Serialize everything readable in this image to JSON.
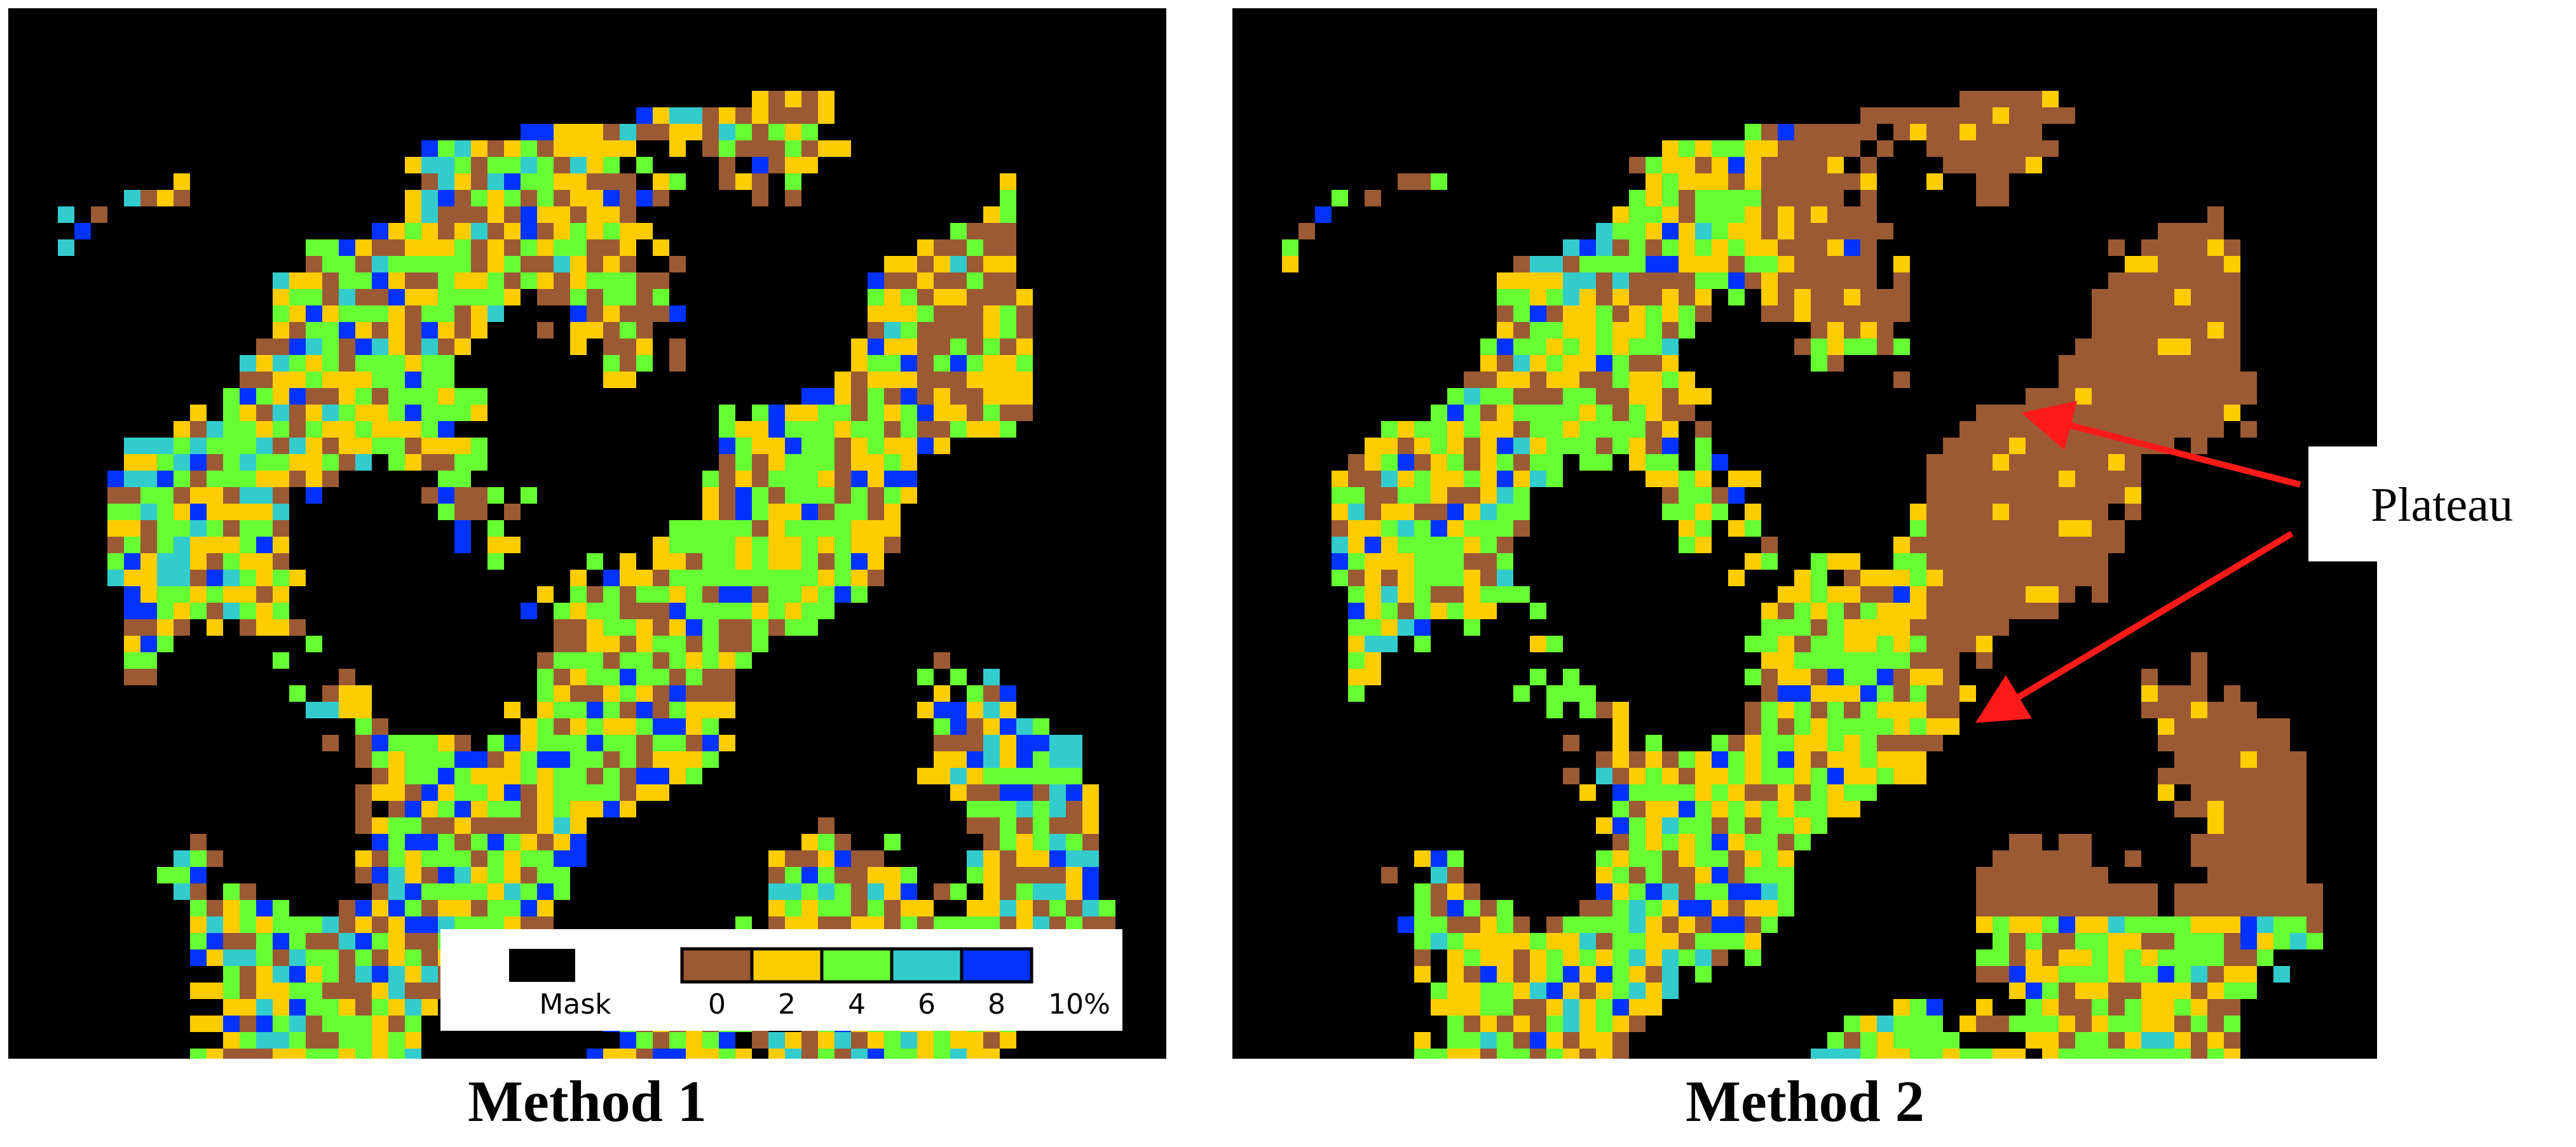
{
  "panels": [
    {
      "title": "Method 1"
    },
    {
      "title": "Method 2"
    }
  ],
  "legend": {
    "mask_label": "Mask",
    "mask_color": "#000000",
    "labels": [
      "0",
      "2",
      "4",
      "6",
      "8",
      "10%"
    ],
    "colors": [
      "#9b5a34",
      "#ffcc00",
      "#66ff33",
      "#33cccc",
      "#0033ff"
    ]
  },
  "annotation": "Plateau"
}
